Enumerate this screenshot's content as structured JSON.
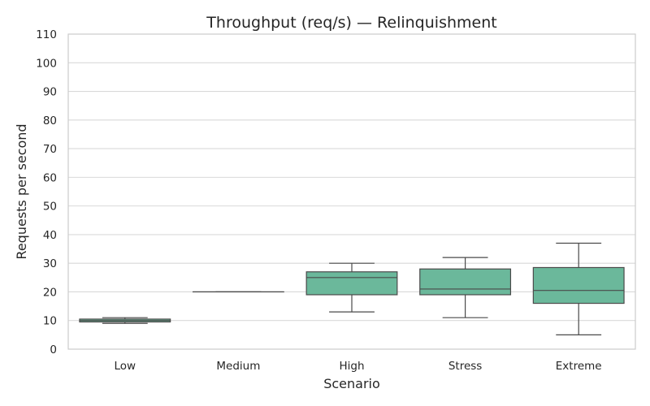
{
  "chart_data": {
    "type": "box",
    "title": "Throughput (req/s) — Relinquishment",
    "xlabel": "Scenario",
    "ylabel": "Requests per second",
    "ylim": [
      0,
      110
    ],
    "yticks": [
      0,
      10,
      20,
      30,
      40,
      50,
      60,
      70,
      80,
      90,
      100,
      110
    ],
    "grid": "horizontal",
    "box_color": "#6bb89b",
    "categories": [
      "Low",
      "Medium",
      "High",
      "Stress",
      "Extreme"
    ],
    "boxes": [
      {
        "category": "Low",
        "whisker_low": 9,
        "q1": 9.5,
        "median": 10,
        "q3": 10.5,
        "whisker_high": 11
      },
      {
        "category": "Medium",
        "whisker_low": 20,
        "q1": 20,
        "median": 20,
        "q3": 20,
        "whisker_high": 20
      },
      {
        "category": "High",
        "whisker_low": 13,
        "q1": 19,
        "median": 25,
        "q3": 27,
        "whisker_high": 30
      },
      {
        "category": "Stress",
        "whisker_low": 11,
        "q1": 19,
        "median": 21,
        "q3": 28,
        "whisker_high": 32
      },
      {
        "category": "Extreme",
        "whisker_low": 5,
        "q1": 16,
        "median": 20.5,
        "q3": 28.5,
        "whisker_high": 37
      }
    ]
  }
}
